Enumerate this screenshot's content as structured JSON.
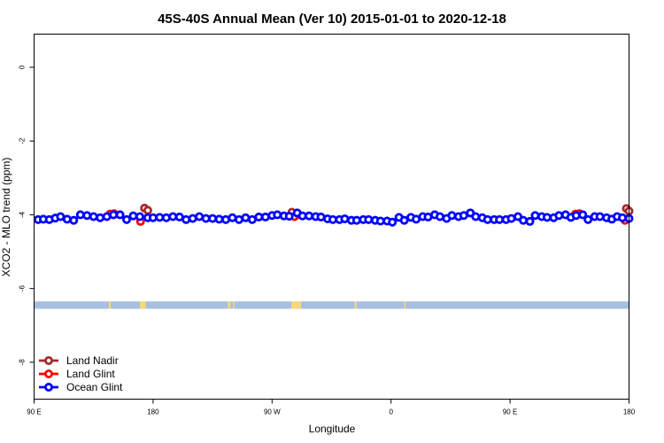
{
  "chart_data": {
    "type": "scatter",
    "title": "45S-40S Annual Mean (Ver 10)   2015-01-01 to 2020-12-18",
    "xlabel": "Longitude",
    "ylabel": "XCO2 - MLO trend (ppm)",
    "x_ticks": [
      {
        "value": 90,
        "label": "90 E"
      },
      {
        "value": 180,
        "label": "180"
      },
      {
        "value": 270,
        "label": "90 W"
      },
      {
        "value": 360,
        "label": "0"
      },
      {
        "value": 450,
        "label": "90 E"
      },
      {
        "value": 540,
        "label": "180"
      }
    ],
    "y_ticks": [
      {
        "value": 0,
        "label": "0"
      },
      {
        "value": -2,
        "label": "-2"
      },
      {
        "value": -4,
        "label": "-4"
      },
      {
        "value": -6,
        "label": "-6"
      },
      {
        "value": -8,
        "label": "-8"
      }
    ],
    "xlim": [
      90,
      540
    ],
    "ylim": [
      -9.0,
      0.9
    ],
    "grid": false,
    "legend_position": "bottom-left",
    "land_strip": {
      "y_range": [
        -6.55,
        -6.35
      ],
      "ocean_color": "#a7bfe0",
      "land_color": "#f5d87a",
      "land_segments": [
        [
          146.5,
          148.0
        ],
        [
          170.0,
          174.5
        ],
        [
          284.5,
          292.0
        ],
        [
          332.5,
          334.0
        ],
        [
          370.0,
          371.0
        ],
        [
          236.5,
          238.0
        ],
        [
          237.0,
          238.5
        ],
        [
          240.5,
          241.5
        ],
        [
          237.0,
          237.0
        ]
      ]
    },
    "series": [
      {
        "name": "Land Nadir",
        "color": "#a52a2a",
        "points": [
          [
            173.5,
            -3.82
          ],
          [
            176.0,
            -3.88
          ],
          [
            285.0,
            -3.93
          ],
          [
            538.0,
            -3.83
          ],
          [
            540.0,
            -3.9
          ]
        ]
      },
      {
        "name": "Land Glint",
        "color": "#ff0000",
        "points": [
          [
            147.5,
            -3.98
          ],
          [
            150.5,
            -3.97
          ],
          [
            170.5,
            -4.18
          ],
          [
            287.0,
            -4.05
          ],
          [
            290.0,
            -3.99
          ],
          [
            499.5,
            -3.98
          ],
          [
            502.5,
            -3.97
          ],
          [
            537.0,
            -4.15
          ]
        ]
      },
      {
        "name": "Ocean Glint",
        "color": "#0000ff",
        "points": [
          [
            93,
            -4.13
          ],
          [
            97,
            -4.12
          ],
          [
            101.5,
            -4.13
          ],
          [
            106,
            -4.09
          ],
          [
            110,
            -4.05
          ],
          [
            115,
            -4.12
          ],
          [
            120,
            -4.15
          ],
          [
            125,
            -4.0
          ],
          [
            130,
            -4.02
          ],
          [
            135,
            -4.05
          ],
          [
            140,
            -4.08
          ],
          [
            145,
            -4.05
          ],
          [
            150,
            -4.0
          ],
          [
            155,
            -4.0
          ],
          [
            160,
            -4.13
          ],
          [
            165,
            -4.03
          ],
          [
            170,
            -4.05
          ],
          [
            176,
            -4.08
          ],
          [
            180,
            -4.08
          ],
          [
            185,
            -4.07
          ],
          [
            190,
            -4.08
          ],
          [
            195,
            -4.05
          ],
          [
            200,
            -4.06
          ],
          [
            205,
            -4.13
          ],
          [
            210,
            -4.1
          ],
          [
            215,
            -4.05
          ],
          [
            220,
            -4.1
          ],
          [
            225,
            -4.1
          ],
          [
            230,
            -4.12
          ],
          [
            235,
            -4.13
          ],
          [
            240,
            -4.08
          ],
          [
            245,
            -4.13
          ],
          [
            250,
            -4.08
          ],
          [
            255,
            -4.13
          ],
          [
            260,
            -4.06
          ],
          [
            265,
            -4.06
          ],
          [
            270,
            -4.02
          ],
          [
            274,
            -4.0
          ],
          [
            279,
            -4.03
          ],
          [
            283,
            -4.04
          ],
          [
            289,
            -3.95
          ],
          [
            293,
            -4.03
          ],
          [
            298,
            -4.03
          ],
          [
            303,
            -4.05
          ],
          [
            307,
            -4.06
          ],
          [
            312,
            -4.11
          ],
          [
            316,
            -4.13
          ],
          [
            321,
            -4.13
          ],
          [
            325,
            -4.11
          ],
          [
            330,
            -4.15
          ],
          [
            334,
            -4.15
          ],
          [
            339,
            -4.13
          ],
          [
            343,
            -4.13
          ],
          [
            348,
            -4.15
          ],
          [
            352,
            -4.17
          ],
          [
            357,
            -4.17
          ],
          [
            361,
            -4.2
          ],
          [
            366,
            -4.07
          ],
          [
            370,
            -4.15
          ],
          [
            375,
            -4.07
          ],
          [
            379,
            -4.12
          ],
          [
            384,
            -4.05
          ],
          [
            388,
            -4.06
          ],
          [
            393,
            -4.0
          ],
          [
            397,
            -4.05
          ],
          [
            402,
            -4.1
          ],
          [
            406,
            -4.02
          ],
          [
            411,
            -4.05
          ],
          [
            415,
            -4.02
          ],
          [
            420,
            -3.95
          ],
          [
            424,
            -4.05
          ],
          [
            429,
            -4.08
          ],
          [
            433,
            -4.13
          ],
          [
            438,
            -4.13
          ],
          [
            442,
            -4.13
          ],
          [
            447,
            -4.13
          ],
          [
            451,
            -4.1
          ],
          [
            456,
            -4.05
          ],
          [
            460,
            -4.15
          ],
          [
            465,
            -4.18
          ],
          [
            469,
            -4.02
          ],
          [
            474,
            -4.05
          ],
          [
            478,
            -4.07
          ],
          [
            483,
            -4.08
          ],
          [
            487,
            -4.02
          ],
          [
            492,
            -4.0
          ],
          [
            496,
            -4.07
          ],
          [
            500,
            -4.02
          ],
          [
            505,
            -4.0
          ],
          [
            509,
            -4.13
          ],
          [
            514,
            -4.05
          ],
          [
            518,
            -4.05
          ],
          [
            523,
            -4.08
          ],
          [
            527,
            -4.12
          ],
          [
            531,
            -4.05
          ],
          [
            535,
            -4.08
          ],
          [
            540,
            -4.1
          ]
        ]
      }
    ]
  }
}
